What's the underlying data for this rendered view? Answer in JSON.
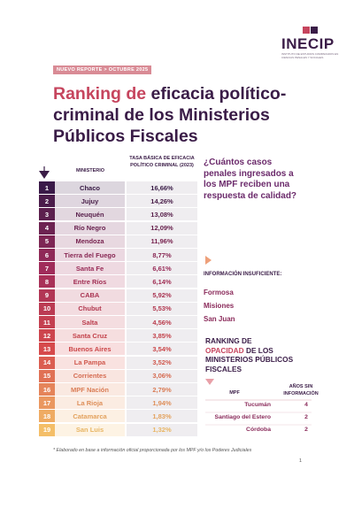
{
  "header": {
    "logo": "INECIP",
    "logo_subtitle": "INSTITUTO DE ESTUDIOS COMPARADOS EN CIENCIAS PENALES Y SOCIALES",
    "tag": "NUEVO REPORTE > OCTUBRE 2025",
    "title_highlight": "Ranking de",
    "title_rest": "eficacia político-criminal de los Ministerios Públicos Fiscales"
  },
  "table": {
    "columns": [
      "MINISTERIO",
      "TASA BÁSICA DE EFICACIA POLÍTICO CRIMINAL (2023)"
    ],
    "rows": [
      [
        "1",
        "Chaco",
        "16,66%"
      ],
      [
        "2",
        "Jujuy",
        "14,26%"
      ],
      [
        "3",
        "Neuquén",
        "13,08%"
      ],
      [
        "4",
        "Río Negro",
        "12,09%"
      ],
      [
        "5",
        "Mendoza",
        "11,96%"
      ],
      [
        "6",
        "Tierra del Fuego",
        "8,77%"
      ],
      [
        "7",
        "Santa Fe",
        "6,61%"
      ],
      [
        "8",
        "Entre Ríos",
        "6,14%"
      ],
      [
        "9",
        "CABA",
        "5,92%"
      ],
      [
        "10",
        "Chubut",
        "5,53%"
      ],
      [
        "11",
        "Salta",
        "4,56%"
      ],
      [
        "12",
        "Santa Cruz",
        "3,85%"
      ],
      [
        "13",
        "Buenos Aires",
        "3,54%"
      ],
      [
        "14",
        "La Pampa",
        "3,52%"
      ],
      [
        "15",
        "Corrientes",
        "3,06%"
      ],
      [
        "16",
        "MPF Nación",
        "2,79%"
      ],
      [
        "17",
        "La Rioja",
        "1,94%"
      ],
      [
        "18",
        "Catamarca",
        "1,83%"
      ],
      [
        "19",
        "San Luis",
        "1,32%"
      ]
    ]
  },
  "question": "¿Cuántos casos penales ingresados a los MPF reciben una respuesta de calidad?",
  "insufficient": {
    "label": "INFORMACIÓN INSUFICIENTE:",
    "items": [
      "Formosa",
      "Misiones",
      "San Juan"
    ]
  },
  "opacity": {
    "title_before": "RANKING DE",
    "title_highlight": "OPACIDAD",
    "title_after": "DE LOS MINISTERIOS PÚBLICOS FISCALES",
    "columns": [
      "MPF",
      "AÑOS SIN INFORMACIÓN"
    ],
    "rows": [
      [
        "Tucumán",
        "4"
      ],
      [
        "Santiago del Estero",
        "2"
      ],
      [
        "Córdoba",
        "2"
      ]
    ]
  },
  "footnote": "* Elaborado en base a información oficial proporcionada por los MPF y/o los Poderes Judiciales",
  "page": "1"
}
